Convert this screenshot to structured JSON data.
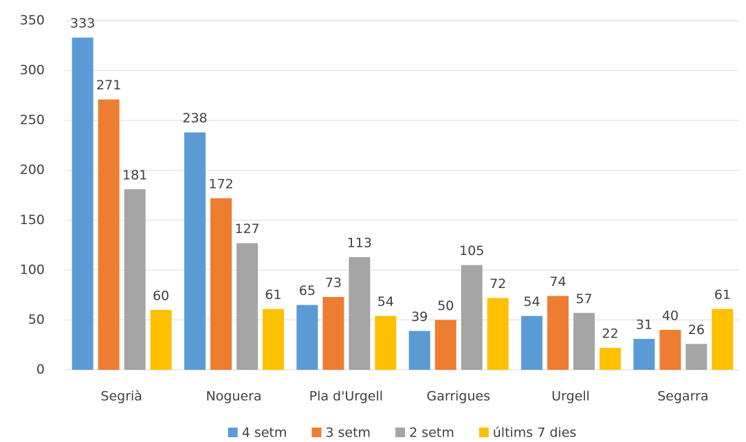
{
  "chart_data": {
    "type": "bar",
    "categories": [
      "Segrià",
      "Noguera",
      "Pla d'Urgell",
      "Garrigues",
      "Urgell",
      "Segarra"
    ],
    "series": [
      {
        "name": "4 setm",
        "color": "#5b9bd5",
        "values": [
          333,
          238,
          65,
          39,
          54,
          31
        ]
      },
      {
        "name": "3 setm",
        "color": "#ed7d31",
        "values": [
          271,
          172,
          73,
          50,
          74,
          40
        ]
      },
      {
        "name": "2 setm",
        "color": "#a5a5a5",
        "values": [
          181,
          127,
          113,
          105,
          57,
          26
        ]
      },
      {
        "name": "últims 7 dies",
        "color": "#ffc000",
        "values": [
          60,
          61,
          54,
          72,
          22,
          61
        ]
      }
    ],
    "ylim": [
      0,
      350
    ],
    "yticks": [
      0,
      50,
      100,
      150,
      200,
      250,
      300,
      350
    ],
    "grid": true,
    "legend": "bottom"
  }
}
